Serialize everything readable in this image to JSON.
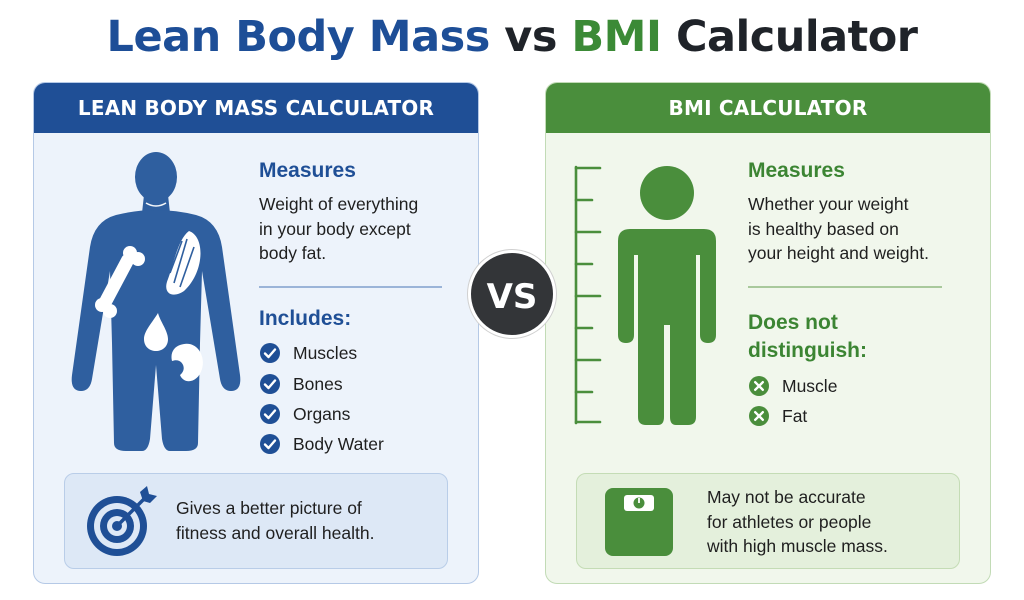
{
  "title": {
    "part1": "Lean Body Mass",
    "part2": "vs",
    "part3": "BMI",
    "part4": "Calculator"
  },
  "colors": {
    "blue": "#1f4f96",
    "green": "#4a8e3c",
    "vs_circle": "#333538"
  },
  "vs_label": "VS",
  "left": {
    "header": "LEAN BODY MASS CALCULATOR",
    "measures_heading": "Measures",
    "measures_text": [
      "Weight of everything",
      "in your body except",
      "body fat."
    ],
    "includes_heading": "Includes:",
    "includes": [
      "Muscles",
      "Bones",
      "Organs",
      "Body Water"
    ],
    "note_text": [
      "Gives a better picture of",
      "fitness and overall health."
    ]
  },
  "right": {
    "header": "BMI CALCULATOR",
    "measures_heading": "Measures",
    "measures_text": [
      "Whether your weight",
      "is healthy based on",
      "your height and weight."
    ],
    "distinguish_heading": [
      "Does not",
      "distinguish:"
    ],
    "excludes": [
      "Muscle",
      "Fat"
    ],
    "note_text": [
      "May not be accurate",
      "for athletes or people",
      "with high muscle mass."
    ]
  }
}
